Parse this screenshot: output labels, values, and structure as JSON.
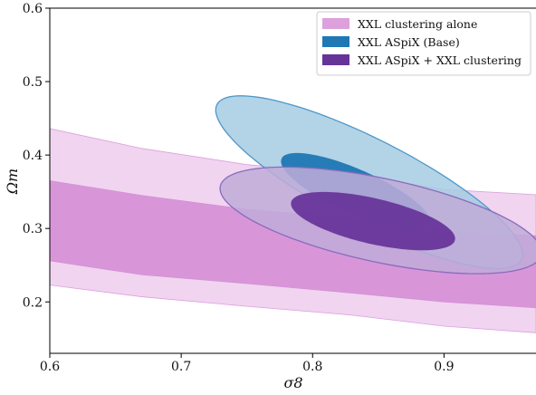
{
  "chart_data": {
    "type": "area",
    "xlabel": "σ8",
    "ylabel": "Ωm",
    "xlim": [
      0.6,
      0.97
    ],
    "ylim": [
      0.13,
      0.6
    ],
    "x_ticks": [
      0.6,
      0.7,
      0.8,
      0.9
    ],
    "x_tick_labels": [
      "0.6",
      "0.7",
      "0.8",
      "0.9"
    ],
    "y_ticks": [
      0.2,
      0.3,
      0.4,
      0.5,
      0.6
    ],
    "y_tick_labels": [
      "0.2",
      "0.3",
      "0.4",
      "0.5",
      "0.6"
    ],
    "legend_position": "top-right",
    "legend": [
      {
        "label": "XXL clustering alone",
        "color": "#dda0dd"
      },
      {
        "label": "XXL ASpiX (Base)",
        "color": "#1f77b4"
      },
      {
        "label": "XXL ASpiX + XXL clustering",
        "color": "#663399"
      }
    ],
    "bands": [
      {
        "series": "XXL clustering alone",
        "level": "outer",
        "color": "#dda0dd",
        "opacity": 0.45,
        "upper": [
          [
            0.6,
            0.436
          ],
          [
            0.67,
            0.409
          ],
          [
            0.75,
            0.387
          ],
          [
            0.83,
            0.374
          ],
          [
            0.9,
            0.353
          ],
          [
            0.97,
            0.346
          ]
        ],
        "lower": [
          [
            0.6,
            0.223
          ],
          [
            0.67,
            0.207
          ],
          [
            0.75,
            0.194
          ],
          [
            0.83,
            0.182
          ],
          [
            0.9,
            0.167
          ],
          [
            0.97,
            0.158
          ]
        ]
      },
      {
        "series": "XXL clustering alone",
        "level": "inner",
        "color": "#d58fd6",
        "opacity": 0.9,
        "upper": [
          [
            0.6,
            0.365
          ],
          [
            0.67,
            0.345
          ],
          [
            0.75,
            0.326
          ],
          [
            0.83,
            0.314
          ],
          [
            0.9,
            0.296
          ],
          [
            0.97,
            0.29
          ]
        ],
        "lower": [
          [
            0.6,
            0.256
          ],
          [
            0.67,
            0.237
          ],
          [
            0.75,
            0.225
          ],
          [
            0.83,
            0.212
          ],
          [
            0.9,
            0.2
          ],
          [
            0.97,
            0.192
          ]
        ]
      }
    ],
    "ellipses": [
      {
        "series": "XXL ASpiX (Base)",
        "level": "outer",
        "cx": 0.843,
        "cy": 0.363,
        "rx": 0.13,
        "ry": 0.058,
        "angle_deg": 27,
        "fill": "#a6cbe3",
        "opacity": 0.85,
        "stroke": "#4d98c9"
      },
      {
        "series": "XXL ASpiX (Base)",
        "level": "inner",
        "cx": 0.833,
        "cy": 0.35,
        "rx": 0.062,
        "ry": 0.03,
        "angle_deg": 24,
        "fill": "#1f77b4",
        "opacity": 0.95,
        "stroke": "none"
      },
      {
        "series": "XXL ASpiX + XXL clustering",
        "level": "outer",
        "cx": 0.852,
        "cy": 0.311,
        "rx": 0.125,
        "ry": 0.057,
        "angle_deg": 12,
        "fill": "#c0acd8",
        "opacity": 0.85,
        "stroke": "#8a6bbd"
      },
      {
        "series": "XXL ASpiX + XXL clustering",
        "level": "inner",
        "cx": 0.846,
        "cy": 0.31,
        "rx": 0.064,
        "ry": 0.031,
        "angle_deg": 13,
        "fill": "#663399",
        "opacity": 0.93,
        "stroke": "none"
      }
    ]
  }
}
